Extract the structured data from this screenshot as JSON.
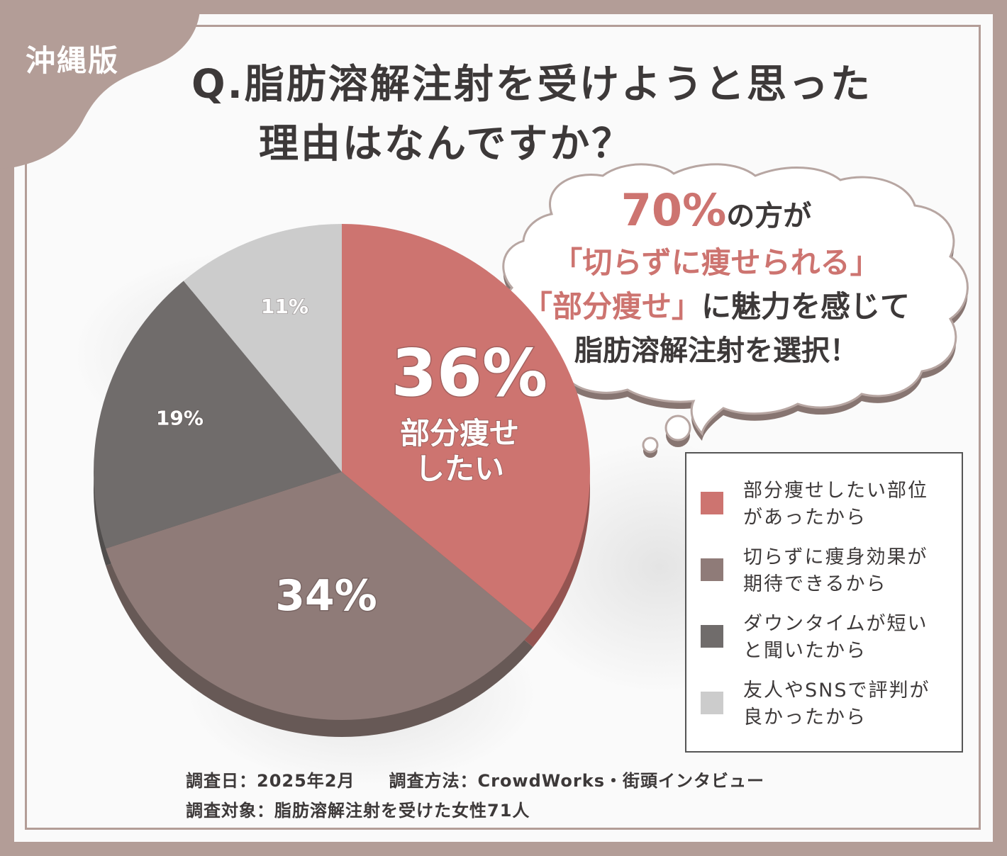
{
  "badge": "沖縄版",
  "title": {
    "line1": "Q.脂肪溶解注射を受けようと思った",
    "line2": "理由はなんですか？"
  },
  "callout": {
    "pct": "70%",
    "line1_rest": "の方が",
    "line2": "「切らずに痩せられる」",
    "line3_part1": "「部分痩せ」",
    "line3_part2": "に魅力を感じて",
    "line4": "脂肪溶解注射を選択！"
  },
  "chart_data": {
    "type": "pie",
    "title": "Q.脂肪溶解注射を受けようと思った理由はなんですか？",
    "slices": [
      {
        "label": "部分痩せしたい部位があったから",
        "value": 36,
        "display": "36%",
        "sublabel": "部分痩せしたい",
        "color": "#cd7470"
      },
      {
        "label": "切らずに痩身効果が期待できるから",
        "value": 34,
        "display": "34%",
        "color": "#8f7b78"
      },
      {
        "label": "ダウンタイムが短いと聞いたから",
        "value": 19,
        "display": "19%",
        "color": "#706c6b"
      },
      {
        "label": "友人やSNSで評判が良かったから",
        "value": 11,
        "display": "11%",
        "color": "#cccccc"
      }
    ],
    "legend_position": "right"
  },
  "legend": [
    {
      "text": "部分痩せしたい部位\nがあったから",
      "color": "#cd7470"
    },
    {
      "text": "切らずに痩身効果が\n期待できるから",
      "color": "#8f7b78"
    },
    {
      "text": "ダウンタイムが短い\nと聞いたから",
      "color": "#706c6b"
    },
    {
      "text": "友人やSNSで評判が\n良かったから",
      "color": "#cccccc"
    }
  ],
  "footer": {
    "date": "調査日：2025年2月",
    "method": "調査方法：CrowdWorks・街頭インタビュー",
    "target": "調査対象：脂肪溶解注射を受けた女性71人"
  },
  "colors": {
    "frame": "#b39d97",
    "accent": "#cd7470",
    "text": "#3d3939"
  }
}
